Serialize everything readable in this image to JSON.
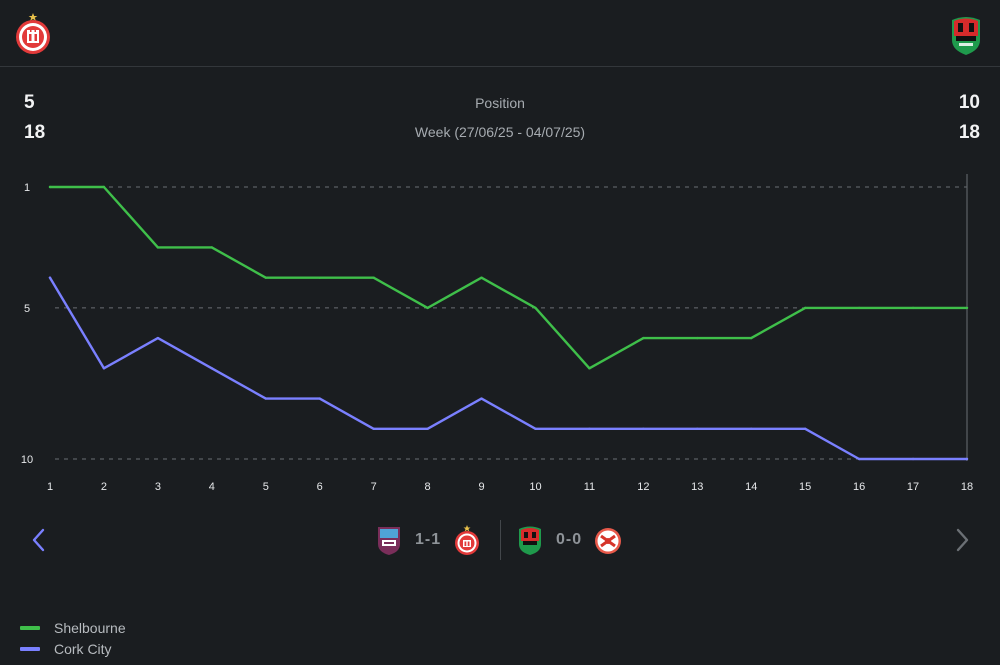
{
  "header": {
    "home_logo_icon": "shelbourne-crest-icon",
    "away_logo_icon": "cork-city-crest-icon"
  },
  "summary": {
    "home_position": "5",
    "home_total": "18",
    "away_position": "10",
    "away_total": "18",
    "metric_label": "Position",
    "period_label": "Week (27/06/25 - 04/07/25)"
  },
  "matches": [
    {
      "home_icon": "galway-crest-icon",
      "score": "1-1",
      "away_icon": "shelbourne-crest-icon"
    },
    {
      "home_icon": "cork-city-crest-icon",
      "score": "0-0",
      "away_icon": "st-patricks-crest-icon"
    }
  ],
  "nav": {
    "prev_icon": "chevron-left-icon",
    "next_icon": "chevron-right-icon"
  },
  "colors": {
    "shelbourne": "#3fbf4a",
    "cork_city": "#7a80ff",
    "background": "#1a1d20"
  },
  "chart_data": {
    "type": "line",
    "x": [
      1,
      2,
      3,
      4,
      5,
      6,
      7,
      8,
      9,
      10,
      11,
      12,
      13,
      14,
      15,
      16,
      17,
      18
    ],
    "x_tick_labels": [
      "1",
      "2",
      "3",
      "4",
      "5",
      "6",
      "7",
      "8",
      "9",
      "10",
      "11",
      "12",
      "13",
      "14",
      "15",
      "16",
      "17",
      "18"
    ],
    "y_tick_labels": [
      "1",
      "5",
      "10"
    ],
    "y_ticks": [
      1,
      5,
      10
    ],
    "ylim": [
      1,
      10
    ],
    "y_inverted": true,
    "grid": "horizontal dashed at y ticks",
    "legend_position": "bottom-left",
    "series": [
      {
        "name": "Shelbourne",
        "color": "#3fbf4a",
        "values": [
          1,
          1,
          3,
          3,
          4,
          4,
          4,
          5,
          4,
          5,
          7,
          6,
          6,
          6,
          5,
          5,
          5,
          5
        ]
      },
      {
        "name": "Cork City",
        "color": "#7a80ff",
        "values": [
          4,
          7,
          6,
          7,
          8,
          8,
          9,
          9,
          8,
          9,
          9,
          9,
          9,
          9,
          9,
          10,
          10,
          10
        ]
      }
    ]
  }
}
